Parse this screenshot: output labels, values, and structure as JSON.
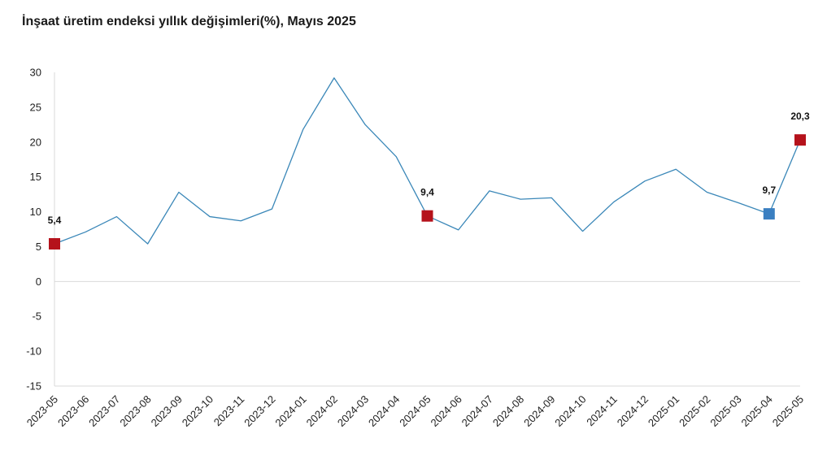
{
  "chart_data": {
    "type": "line",
    "title": "İnşaat üretim endeksi yıllık değişimleri(%), Mayıs 2025",
    "xlabel": "",
    "ylabel": "",
    "ylim": [
      -15,
      30
    ],
    "yticks": [
      "30",
      "25",
      "20",
      "15",
      "10",
      "5",
      "0",
      "-5",
      "-10",
      "-15"
    ],
    "ytick_values": [
      30,
      25,
      20,
      15,
      10,
      5,
      0,
      -5,
      -10,
      -15
    ],
    "categories": [
      "2023-05",
      "2023-06",
      "2023-07",
      "2023-08",
      "2023-09",
      "2023-10",
      "2023-11",
      "2023-12",
      "2024-01",
      "2024-02",
      "2024-03",
      "2024-04",
      "2024-05",
      "2024-06",
      "2024-07",
      "2024-08",
      "2024-09",
      "2024-10",
      "2024-11",
      "2024-12",
      "2025-01",
      "2025-02",
      "2025-03",
      "2025-04",
      "2025-05"
    ],
    "series": [
      {
        "values": [
          5.4,
          7.1,
          9.3,
          5.4,
          12.8,
          9.3,
          8.7,
          10.4,
          21.8,
          29.2,
          22.5,
          17.9,
          9.4,
          7.4,
          13.0,
          11.8,
          12.0,
          7.2,
          11.4,
          14.4,
          16.1,
          12.8,
          11.3,
          9.7,
          20.3
        ],
        "color": "#3a87b8"
      }
    ],
    "highlighted_points": [
      {
        "category": "2023-05",
        "value": 5.4,
        "label": "5,4",
        "color": "#b5121b"
      },
      {
        "category": "2024-05",
        "value": 9.4,
        "label": "9,4",
        "color": "#b5121b"
      },
      {
        "category": "2025-04",
        "value": 9.7,
        "label": "9,7",
        "color": "#3a7fc1"
      },
      {
        "category": "2025-05",
        "value": 20.3,
        "label": "20,3",
        "color": "#b5121b"
      }
    ],
    "grid": false,
    "legend": "none"
  }
}
